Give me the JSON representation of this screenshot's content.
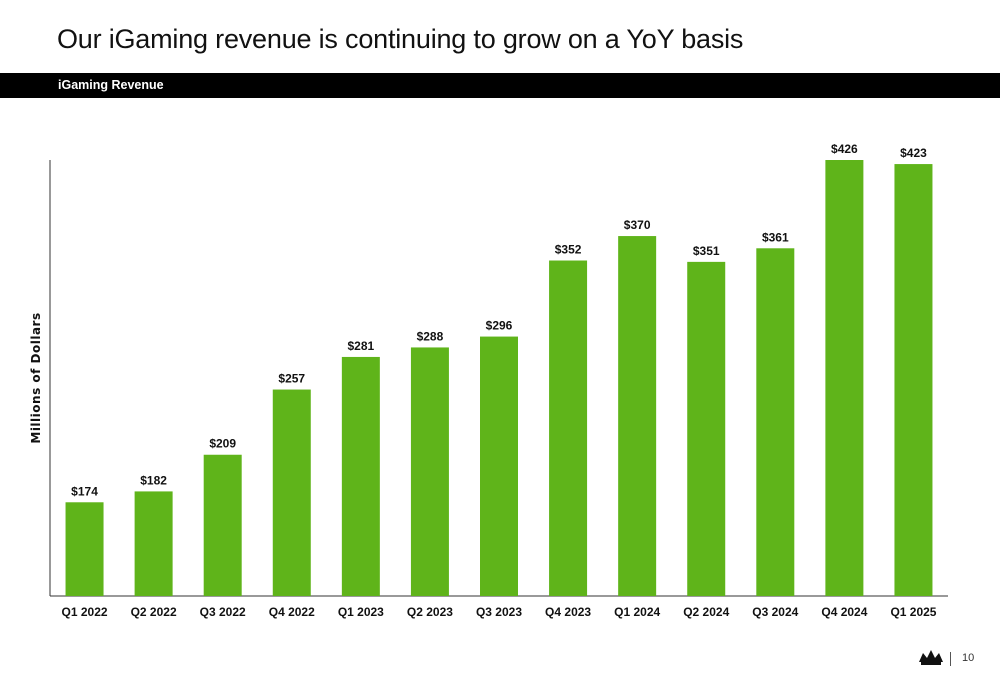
{
  "slide": {
    "title": "Our iGaming revenue is continuing to grow on a YoY basis",
    "banner_label": "iGaming Revenue",
    "page_number": "10"
  },
  "colors": {
    "bar": "#5fb41a",
    "banner": "#000000",
    "text": "#111111"
  },
  "icons": {
    "logo": "crown-logo-icon"
  },
  "chart_data": {
    "type": "bar",
    "title": "",
    "xlabel": "",
    "ylabel": "Millions of Dollars",
    "categories": [
      "Q1 2022",
      "Q2 2022",
      "Q3 2022",
      "Q4 2022",
      "Q1 2023",
      "Q2 2023",
      "Q3 2023",
      "Q4 2023",
      "Q1 2024",
      "Q2 2024",
      "Q3 2024",
      "Q4 2024",
      "Q1 2025"
    ],
    "values": [
      174,
      182,
      209,
      257,
      281,
      288,
      296,
      352,
      370,
      351,
      361,
      426,
      423
    ],
    "data_labels": [
      "$174",
      "$182",
      "$209",
      "$257",
      "$281",
      "$288",
      "$296",
      "$352",
      "$370",
      "$351",
      "$361",
      "$426",
      "$423"
    ],
    "ylim": [
      105,
      426
    ],
    "grid": false,
    "legend": "none"
  }
}
